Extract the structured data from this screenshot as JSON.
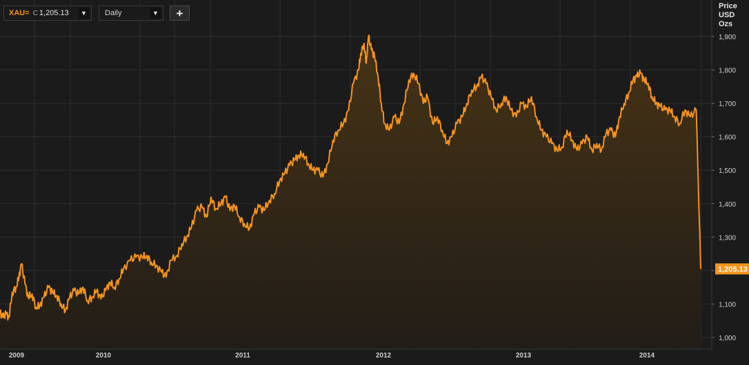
{
  "toolbar": {
    "ric": "XAU=",
    "close_label": "C",
    "last_price": "1,205.13",
    "dropdown_glyph": "▼",
    "interval": "Daily",
    "add_glyph": "+"
  },
  "colors": {
    "background": "#1b1b1b",
    "grid": "#2c2c2c",
    "line": "#f7941d",
    "axis_text": "#cfcfcf",
    "label_box": "#f7941d"
  },
  "chart_data": {
    "type": "area",
    "title": "",
    "unit_label": [
      "Price",
      "USD",
      "Ozs"
    ],
    "x_ticks": [
      "2009",
      "2010",
      "2011",
      "2012",
      "2013",
      "2014"
    ],
    "y_ticks": [
      "1,000",
      "1,100",
      "1,200",
      "1,300",
      "1,400",
      "1,500",
      "1,600",
      "1,700",
      "1,800",
      "1,900"
    ],
    "ylim": [
      1000,
      1900
    ],
    "xlim": [
      "2008-12-15",
      "2014-12-09"
    ],
    "grid": true,
    "y_axis_side": "right",
    "last_value_label": "1,205.13",
    "series": [
      {
        "values": [
          [
            "2008-12-15",
            1075
          ],
          [
            "2008-12-24",
            1060
          ],
          [
            "2009-01-03",
            1070
          ],
          [
            "2009-01-12",
            1060
          ],
          [
            "2009-01-22",
            1135
          ],
          [
            "2009-02-03",
            1150
          ],
          [
            "2009-02-12",
            1180
          ],
          [
            "2009-02-20",
            1220
          ],
          [
            "2009-03-03",
            1160
          ],
          [
            "2009-03-13",
            1120
          ],
          [
            "2009-03-25",
            1130
          ],
          [
            "2009-04-06",
            1090
          ],
          [
            "2009-04-18",
            1095
          ],
          [
            "2009-05-01",
            1120
          ],
          [
            "2009-05-15",
            1150
          ],
          [
            "2009-05-28",
            1135
          ],
          [
            "2009-06-10",
            1125
          ],
          [
            "2009-06-24",
            1100
          ],
          [
            "2009-07-07",
            1080
          ],
          [
            "2009-07-20",
            1120
          ],
          [
            "2009-08-03",
            1140
          ],
          [
            "2009-08-17",
            1130
          ],
          [
            "2009-08-31",
            1150
          ],
          [
            "2009-09-14",
            1110
          ],
          [
            "2009-09-28",
            1120
          ],
          [
            "2009-10-12",
            1140
          ],
          [
            "2009-10-26",
            1115
          ],
          [
            "2009-11-09",
            1140
          ],
          [
            "2009-11-23",
            1165
          ],
          [
            "2009-12-07",
            1150
          ],
          [
            "2009-12-21",
            1175
          ],
          [
            "2010-01-04",
            1205
          ],
          [
            "2010-01-25",
            1230
          ],
          [
            "2010-02-12",
            1240
          ],
          [
            "2010-03-03",
            1240
          ],
          [
            "2010-03-18",
            1245
          ],
          [
            "2010-04-01",
            1225
          ],
          [
            "2010-04-16",
            1215
          ],
          [
            "2010-05-03",
            1195
          ],
          [
            "2010-05-17",
            1180
          ],
          [
            "2010-06-01",
            1230
          ],
          [
            "2010-06-20",
            1245
          ],
          [
            "2010-07-05",
            1280
          ],
          [
            "2010-07-20",
            1300
          ],
          [
            "2010-08-04",
            1330
          ],
          [
            "2010-08-20",
            1380
          ],
          [
            "2010-09-06",
            1390
          ],
          [
            "2010-09-20",
            1360
          ],
          [
            "2010-10-04",
            1420
          ],
          [
            "2010-10-19",
            1385
          ],
          [
            "2010-11-04",
            1400
          ],
          [
            "2010-11-18",
            1420
          ],
          [
            "2010-12-02",
            1380
          ],
          [
            "2010-12-16",
            1395
          ],
          [
            "2011-01-01",
            1360
          ],
          [
            "2011-01-16",
            1340
          ],
          [
            "2011-02-01",
            1325
          ],
          [
            "2011-02-16",
            1370
          ],
          [
            "2011-03-03",
            1390
          ],
          [
            "2011-03-18",
            1380
          ],
          [
            "2011-04-04",
            1410
          ],
          [
            "2011-04-20",
            1430
          ],
          [
            "2011-05-06",
            1470
          ],
          [
            "2011-05-22",
            1490
          ],
          [
            "2011-06-06",
            1515
          ],
          [
            "2011-06-21",
            1530
          ],
          [
            "2011-07-05",
            1545
          ],
          [
            "2011-07-19",
            1550
          ],
          [
            "2011-08-03",
            1520
          ],
          [
            "2011-08-18",
            1500
          ],
          [
            "2011-09-02",
            1500
          ],
          [
            "2011-09-18",
            1480
          ],
          [
            "2011-10-03",
            1520
          ],
          [
            "2011-10-19",
            1590
          ],
          [
            "2011-11-04",
            1620
          ],
          [
            "2011-11-21",
            1640
          ],
          [
            "2011-12-07",
            1680
          ],
          [
            "2011-12-22",
            1760
          ],
          [
            "2012-01-07",
            1800
          ],
          [
            "2012-01-14",
            1850
          ],
          [
            "2012-01-24",
            1880
          ],
          [
            "2012-01-31",
            1820
          ],
          [
            "2012-02-07",
            1900
          ],
          [
            "2012-02-16",
            1860
          ],
          [
            "2012-02-26",
            1840
          ],
          [
            "2012-03-08",
            1780
          ],
          [
            "2012-03-18",
            1700
          ],
          [
            "2012-03-28",
            1640
          ],
          [
            "2012-04-12",
            1620
          ],
          [
            "2012-04-28",
            1660
          ],
          [
            "2012-05-13",
            1640
          ],
          [
            "2012-05-28",
            1700
          ],
          [
            "2012-06-12",
            1770
          ],
          [
            "2012-06-27",
            1790
          ],
          [
            "2012-07-12",
            1760
          ],
          [
            "2012-07-27",
            1700
          ],
          [
            "2012-08-09",
            1720
          ],
          [
            "2012-08-25",
            1640
          ],
          [
            "2012-09-09",
            1660
          ],
          [
            "2012-09-24",
            1620
          ],
          [
            "2012-10-09",
            1580
          ],
          [
            "2012-10-24",
            1600
          ],
          [
            "2012-11-09",
            1640
          ],
          [
            "2012-11-25",
            1660
          ],
          [
            "2012-12-10",
            1700
          ],
          [
            "2012-12-25",
            1740
          ],
          [
            "2013-01-09",
            1750
          ],
          [
            "2013-01-24",
            1780
          ],
          [
            "2013-02-08",
            1760
          ],
          [
            "2013-02-23",
            1720
          ],
          [
            "2013-03-11",
            1680
          ],
          [
            "2013-03-27",
            1700
          ],
          [
            "2013-04-11",
            1720
          ],
          [
            "2013-04-26",
            1680
          ],
          [
            "2013-05-13",
            1660
          ],
          [
            "2013-05-29",
            1700
          ],
          [
            "2013-06-14",
            1690
          ],
          [
            "2013-06-29",
            1720
          ],
          [
            "2013-07-15",
            1660
          ],
          [
            "2013-07-30",
            1620
          ],
          [
            "2013-08-15",
            1600
          ],
          [
            "2013-09-01",
            1580
          ],
          [
            "2013-09-17",
            1560
          ],
          [
            "2013-10-03",
            1570
          ],
          [
            "2013-10-18",
            1620
          ],
          [
            "2013-11-03",
            1590
          ],
          [
            "2013-11-18",
            1560
          ],
          [
            "2013-12-04",
            1580
          ],
          [
            "2013-12-20",
            1600
          ],
          [
            "2014-01-04",
            1560
          ],
          [
            "2014-01-19",
            1580
          ],
          [
            "2014-02-02",
            1560
          ],
          [
            "2014-02-17",
            1610
          ],
          [
            "2014-03-04",
            1620
          ],
          [
            "2014-03-18",
            1600
          ],
          [
            "2014-03-31",
            1660
          ],
          [
            "2014-04-14",
            1700
          ],
          [
            "2014-04-28",
            1730
          ],
          [
            "2014-05-12",
            1770
          ],
          [
            "2014-05-24",
            1780
          ],
          [
            "2014-06-04",
            1790
          ],
          [
            "2014-06-16",
            1770
          ],
          [
            "2014-06-28",
            1760
          ],
          [
            "2014-07-10",
            1720
          ],
          [
            "2014-07-23",
            1700
          ],
          [
            "2014-08-05",
            1690
          ],
          [
            "2014-08-20",
            1680
          ],
          [
            "2014-09-04",
            1680
          ],
          [
            "2014-09-19",
            1660
          ],
          [
            "2014-10-04",
            1640
          ],
          [
            "2014-10-21",
            1680
          ],
          [
            "2014-11-06",
            1660
          ],
          [
            "2014-11-25",
            1680
          ],
          [
            "2014-12-09",
            1205
          ]
        ]
      }
    ]
  }
}
